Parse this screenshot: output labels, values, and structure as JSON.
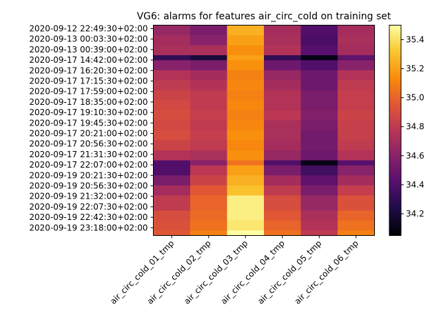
{
  "chart_data": {
    "type": "heatmap",
    "title": "VG6: alarms for features air_circ_cold on training set",
    "xlabel": "",
    "ylabel": "",
    "colormap": "inferno",
    "columns": [
      "air_circ_cold_01_tmp",
      "air_circ_cold_02_tmp",
      "air_circ_cold_03_tmp",
      "air_circ_cold_04_tmp",
      "air_circ_cold_05_tmp",
      "air_circ_cold_06_tmp"
    ],
    "row_tick_labels": [
      "2020-09-12 22:49:30+02:00",
      "2020-09-13 00:03:30+02:00",
      "2020-09-13 00:39:00+02:00",
      "2020-09-17 14:42:00+02:00",
      "2020-09-17 16:20:30+02:00",
      "2020-09-17 17:15:30+02:00",
      "2020-09-17 17:59:00+02:00",
      "2020-09-17 18:35:00+02:00",
      "2020-09-17 19:10:30+02:00",
      "2020-09-17 19:45:30+02:00",
      "2020-09-17 20:21:00+02:00",
      "2020-09-17 20:56:30+02:00",
      "2020-09-17 21:31:30+02:00",
      "2020-09-17 22:07:00+02:00",
      "2020-09-19 20:21:30+02:00",
      "2020-09-19 20:56:30+02:00",
      "2020-09-19 21:32:00+02:00",
      "2020-09-19 22:07:30+02:00",
      "2020-09-19 22:42:30+02:00",
      "2020-09-19 23:18:00+02:00"
    ],
    "colorbar": {
      "range": [
        34.05,
        35.5
      ],
      "ticks": [
        34.2,
        34.4,
        34.6,
        34.8,
        35.0,
        35.2,
        35.4
      ],
      "tick_labels": [
        "34.2",
        "34.4",
        "34.6",
        "34.8",
        "35.0",
        "35.2",
        "35.4"
      ]
    },
    "bands": [
      {
        "rows": 2,
        "values": [
          34.65,
          34.55,
          35.25,
          34.7,
          34.4,
          34.7
        ]
      },
      {
        "rows": 2,
        "values": [
          34.7,
          34.6,
          35.2,
          34.72,
          34.38,
          34.72
        ]
      },
      {
        "rows": 2,
        "values": [
          34.72,
          34.72,
          35.15,
          34.75,
          34.42,
          34.7
        ]
      },
      {
        "rows": 1,
        "values": [
          34.3,
          34.2,
          35.2,
          34.3,
          34.1,
          34.45
        ]
      },
      {
        "rows": 2,
        "values": [
          34.6,
          34.55,
          35.15,
          34.5,
          34.4,
          34.6
        ]
      },
      {
        "rows": 2,
        "values": [
          34.75,
          34.7,
          35.1,
          34.65,
          34.5,
          34.75
        ]
      },
      {
        "rows": 2,
        "values": [
          34.8,
          34.75,
          35.12,
          34.7,
          34.5,
          34.8
        ]
      },
      {
        "rows": 2,
        "values": [
          34.85,
          34.8,
          35.1,
          34.75,
          34.55,
          34.82
        ]
      },
      {
        "rows": 2,
        "values": [
          34.88,
          34.8,
          35.12,
          34.75,
          34.55,
          34.82
        ]
      },
      {
        "rows": 2,
        "values": [
          34.9,
          34.82,
          35.1,
          34.78,
          34.58,
          34.85
        ]
      },
      {
        "rows": 2,
        "values": [
          34.88,
          34.8,
          35.12,
          34.72,
          34.55,
          34.83
        ]
      },
      {
        "rows": 2,
        "values": [
          34.9,
          34.82,
          35.15,
          34.72,
          34.52,
          34.83
        ]
      },
      {
        "rows": 2,
        "values": [
          34.85,
          34.8,
          35.12,
          34.7,
          34.52,
          34.8
        ]
      },
      {
        "rows": 2,
        "values": [
          34.75,
          34.72,
          35.15,
          34.65,
          34.5,
          34.75
        ]
      },
      {
        "rows": 1,
        "values": [
          34.4,
          34.6,
          35.05,
          34.4,
          34.1,
          34.42
        ]
      },
      {
        "rows": 2,
        "values": [
          34.4,
          34.78,
          35.2,
          34.55,
          34.35,
          34.6
        ]
      },
      {
        "rows": 2,
        "values": [
          34.55,
          34.85,
          35.25,
          34.7,
          34.45,
          34.7
        ]
      },
      {
        "rows": 2,
        "values": [
          34.7,
          34.95,
          35.3,
          34.8,
          34.55,
          34.82
        ]
      },
      {
        "rows": 3,
        "values": [
          34.8,
          35.0,
          35.45,
          34.9,
          34.65,
          34.92
        ]
      },
      {
        "rows": 2,
        "values": [
          34.9,
          35.02,
          35.45,
          34.95,
          34.72,
          35.0
        ]
      },
      {
        "rows": 2,
        "values": [
          34.92,
          35.05,
          35.42,
          35.0,
          34.75,
          35.05
        ]
      },
      {
        "rows": 1,
        "values": [
          34.95,
          35.1,
          35.5,
          35.05,
          34.8,
          35.1
        ]
      }
    ]
  }
}
